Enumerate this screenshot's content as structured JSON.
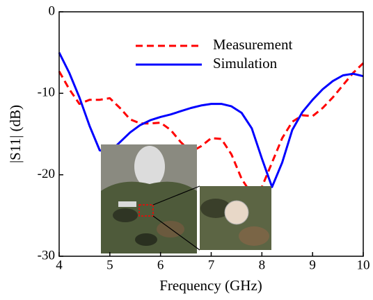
{
  "chart_data": {
    "type": "line",
    "xlabel": "Frequency (GHz)",
    "ylabel": "|S11| (dB)",
    "x": [
      4.0,
      4.2,
      4.4,
      4.6,
      4.8,
      5.0,
      5.2,
      5.4,
      5.6,
      5.8,
      6.0,
      6.2,
      6.4,
      6.6,
      6.8,
      7.0,
      7.2,
      7.4,
      7.6,
      7.8,
      8.0,
      8.2,
      8.4,
      8.6,
      8.8,
      9.0,
      9.2,
      9.4,
      9.6,
      9.8,
      10.0
    ],
    "series": [
      {
        "name": "Measurement",
        "color": "#ff0000",
        "dashed": true,
        "values": [
          -7.3,
          -9.5,
          -11.3,
          -10.8,
          -10.8,
          -10.6,
          -11.8,
          -13.2,
          -13.7,
          -13.7,
          -13.6,
          -14.5,
          -16,
          -17.2,
          -16.5,
          -15.5,
          -15.6,
          -17.5,
          -20.5,
          -22.4,
          -21.5,
          -18.5,
          -15.5,
          -13.5,
          -12.7,
          -12.8,
          -11.8,
          -10.5,
          -9,
          -7.5,
          -6.3
        ]
      },
      {
        "name": "Simulation",
        "color": "#0000ff",
        "dashed": false,
        "values": [
          -5,
          -7.5,
          -10.5,
          -14,
          -17,
          -17.2,
          -16,
          -14.8,
          -13.9,
          -13.3,
          -12.9,
          -12.6,
          -12.2,
          -11.8,
          -11.5,
          -11.3,
          -11.3,
          -11.6,
          -12.4,
          -14.3,
          -18,
          -21.5,
          -18.5,
          -14.5,
          -12.3,
          -10.8,
          -9.5,
          -8.5,
          -7.8,
          -7.6,
          -7.9
        ]
      }
    ],
    "xlim": [
      4,
      10
    ],
    "xticks": [
      4,
      5,
      6,
      7,
      8,
      9,
      10
    ],
    "ylim": [
      -30,
      0
    ],
    "yticks": [
      -30,
      -20,
      -10,
      0
    ]
  }
}
